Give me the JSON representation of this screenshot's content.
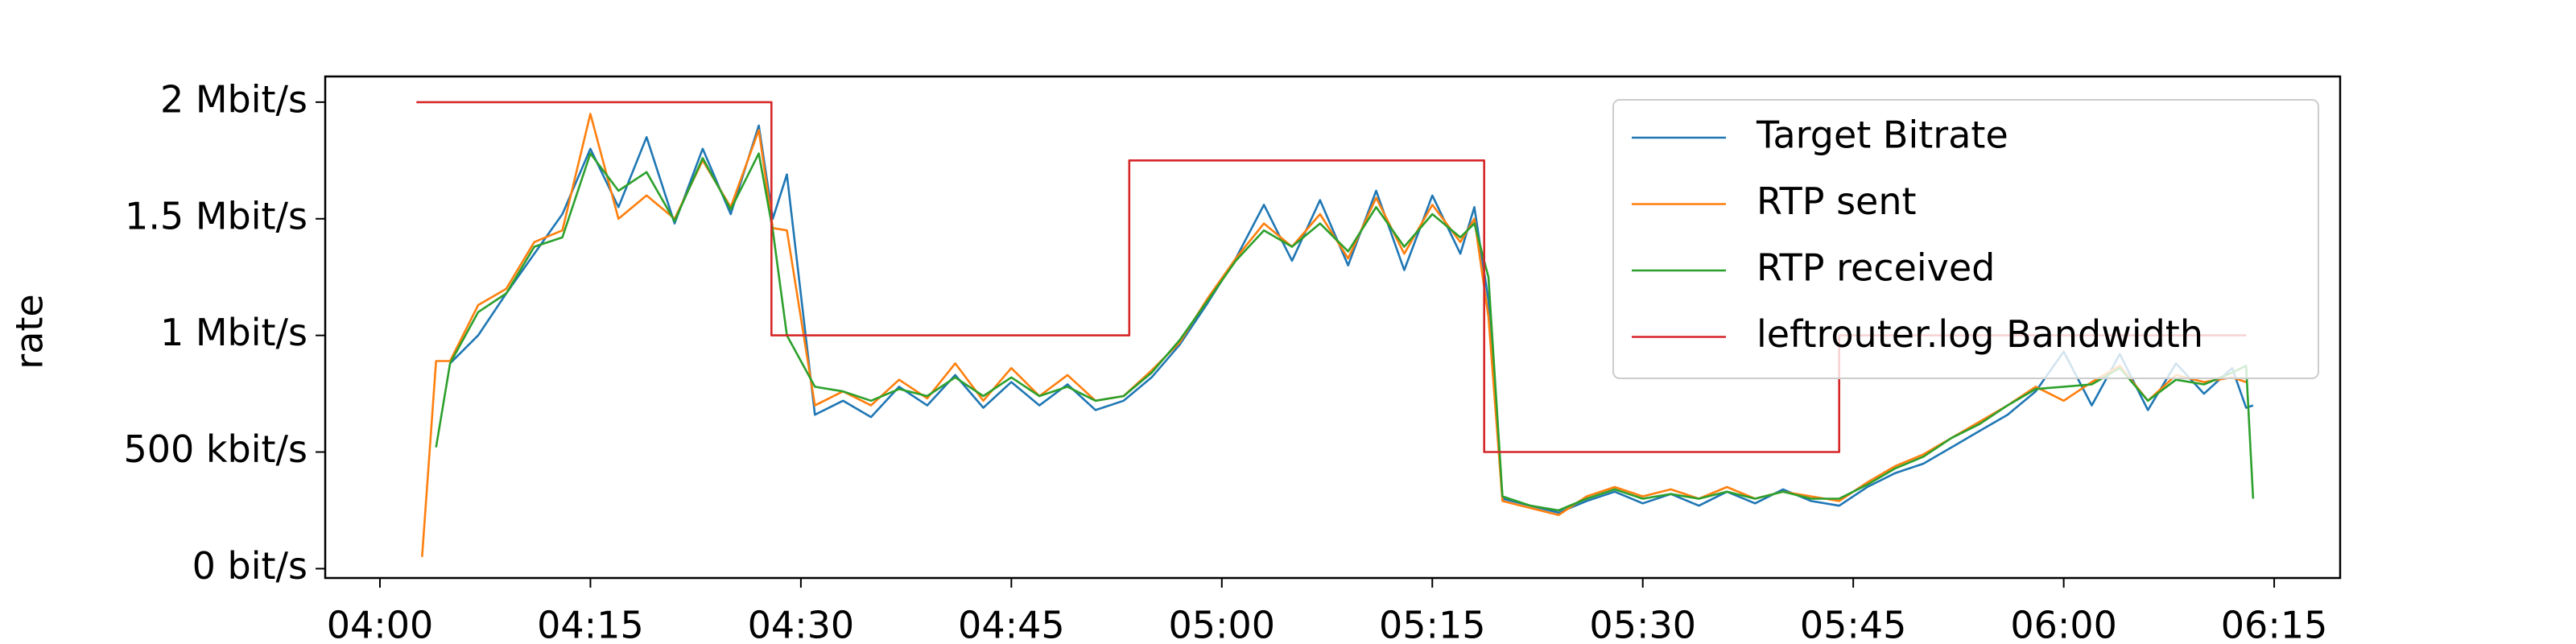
{
  "chart_data": {
    "type": "line",
    "y_label": "rate",
    "x": [
      243,
      244,
      245,
      247,
      249,
      251,
      253,
      255,
      257,
      259,
      261,
      263,
      265,
      267,
      268,
      269,
      271,
      273,
      275,
      277,
      279,
      281,
      283,
      285,
      287,
      289,
      291,
      293,
      295,
      297,
      299,
      301,
      303,
      305,
      307,
      309,
      311,
      313,
      315,
      317,
      318,
      319,
      320,
      322,
      324,
      326,
      328,
      330,
      332,
      334,
      336,
      338,
      340,
      342,
      344,
      346,
      348,
      350,
      352,
      354,
      356,
      358,
      360,
      362,
      364,
      366,
      368,
      370,
      372,
      373,
      373.5
    ],
    "series": [
      {
        "name": "Target Bitrate",
        "color": "#1f77b4",
        "values": [
          null,
          null,
          880000,
          1000000,
          1180000,
          1350000,
          1520000,
          1800000,
          1550000,
          1850000,
          1480000,
          1800000,
          1520000,
          1900000,
          1500000,
          1690000,
          660000,
          720000,
          650000,
          780000,
          700000,
          830000,
          690000,
          800000,
          700000,
          790000,
          680000,
          720000,
          820000,
          960000,
          1140000,
          1330000,
          1560000,
          1320000,
          1580000,
          1300000,
          1620000,
          1280000,
          1600000,
          1350000,
          1550000,
          1150000,
          300000,
          270000,
          240000,
          290000,
          330000,
          280000,
          320000,
          270000,
          330000,
          280000,
          340000,
          290000,
          270000,
          350000,
          410000,
          450000,
          520000,
          590000,
          660000,
          760000,
          930000,
          700000,
          920000,
          680000,
          880000,
          750000,
          860000,
          690000,
          700000
        ]
      },
      {
        "name": "RTP sent",
        "color": "#ff7f0e",
        "values": [
          50000,
          890000,
          890000,
          1130000,
          1200000,
          1400000,
          1450000,
          1950000,
          1500000,
          1600000,
          1500000,
          1750000,
          1550000,
          1880000,
          1460000,
          1450000,
          700000,
          760000,
          700000,
          810000,
          730000,
          880000,
          720000,
          860000,
          740000,
          830000,
          720000,
          740000,
          850000,
          970000,
          1160000,
          1330000,
          1480000,
          1380000,
          1520000,
          1330000,
          1590000,
          1350000,
          1560000,
          1400000,
          1500000,
          1080000,
          290000,
          260000,
          230000,
          310000,
          350000,
          310000,
          340000,
          300000,
          350000,
          300000,
          330000,
          310000,
          290000,
          370000,
          440000,
          490000,
          560000,
          630000,
          700000,
          780000,
          720000,
          800000,
          870000,
          720000,
          830000,
          800000,
          820000,
          800000,
          null
        ]
      },
      {
        "name": "RTP received",
        "color": "#2ca02c",
        "values": [
          null,
          520000,
          880000,
          1100000,
          1180000,
          1380000,
          1420000,
          1780000,
          1620000,
          1700000,
          1490000,
          1760000,
          1540000,
          1780000,
          1450000,
          1000000,
          780000,
          760000,
          720000,
          770000,
          740000,
          820000,
          740000,
          820000,
          740000,
          780000,
          720000,
          740000,
          840000,
          980000,
          1150000,
          1320000,
          1450000,
          1380000,
          1480000,
          1360000,
          1550000,
          1380000,
          1520000,
          1420000,
          1480000,
          1250000,
          310000,
          270000,
          250000,
          300000,
          340000,
          300000,
          320000,
          300000,
          330000,
          300000,
          330000,
          300000,
          300000,
          360000,
          430000,
          480000,
          560000,
          620000,
          700000,
          770000,
          780000,
          790000,
          860000,
          720000,
          810000,
          790000,
          840000,
          870000,
          300000
        ]
      },
      {
        "name": "leftrouter.log Bandwidth",
        "color": "#d62728",
        "x": [
          242.6,
          267.9,
          267.9,
          293.4,
          293.4,
          318.7,
          318.7,
          344,
          344,
          373
        ],
        "values": [
          2000000,
          2000000,
          1000000,
          1000000,
          1750000,
          1750000,
          500000,
          500000,
          1000000,
          1000000
        ]
      }
    ],
    "xlim": [
      236.1,
      379.7
    ],
    "ylim": [
      -40000,
      2110000
    ],
    "xticks": [
      {
        "value": 240,
        "label": "04:00"
      },
      {
        "value": 255,
        "label": "04:15"
      },
      {
        "value": 270,
        "label": "04:30"
      },
      {
        "value": 285,
        "label": "04:45"
      },
      {
        "value": 300,
        "label": "05:00"
      },
      {
        "value": 315,
        "label": "05:15"
      },
      {
        "value": 330,
        "label": "05:30"
      },
      {
        "value": 345,
        "label": "05:45"
      },
      {
        "value": 360,
        "label": "06:00"
      },
      {
        "value": 375,
        "label": "06:15"
      }
    ],
    "yticks": [
      {
        "value": 0,
        "label": "0 bit/s"
      },
      {
        "value": 500000,
        "label": "500 kbit/s"
      },
      {
        "value": 1000000,
        "label": "1 Mbit/s"
      },
      {
        "value": 1500000,
        "label": "1.5 Mbit/s"
      },
      {
        "value": 2000000,
        "label": "2 Mbit/s"
      }
    ],
    "legend": "upper right"
  }
}
